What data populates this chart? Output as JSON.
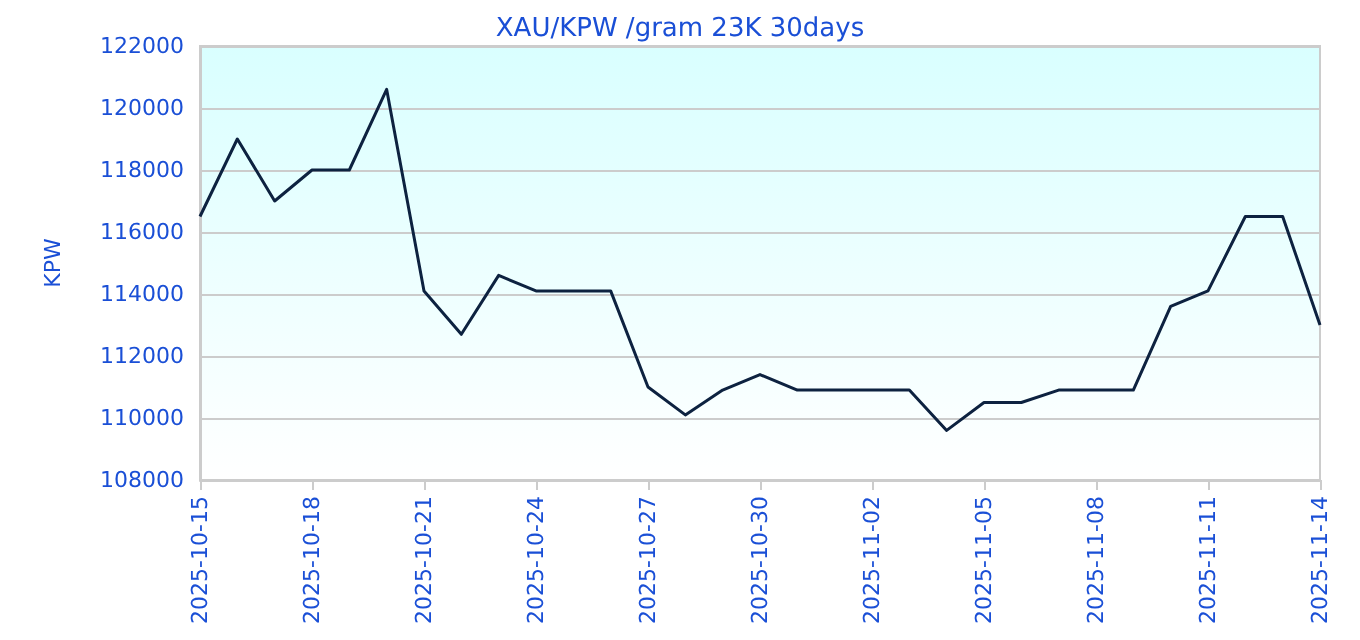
{
  "chart_data": {
    "type": "line",
    "title": "XAU/KPW /gram 23K 30days",
    "ylabel": "KPW",
    "x": [
      "2025-10-15",
      "2025-10-16",
      "2025-10-17",
      "2025-10-18",
      "2025-10-19",
      "2025-10-20",
      "2025-10-21",
      "2025-10-22",
      "2025-10-23",
      "2025-10-24",
      "2025-10-25",
      "2025-10-26",
      "2025-10-27",
      "2025-10-28",
      "2025-10-29",
      "2025-10-30",
      "2025-10-31",
      "2025-11-01",
      "2025-11-02",
      "2025-11-03",
      "2025-11-04",
      "2025-11-05",
      "2025-11-06",
      "2025-11-07",
      "2025-11-08",
      "2025-11-09",
      "2025-11-10",
      "2025-11-11",
      "2025-11-12",
      "2025-11-13",
      "2025-11-14"
    ],
    "series": [
      {
        "color": "#0d2240",
        "values": [
          116500,
          119000,
          117000,
          118000,
          118000,
          120600,
          114100,
          112700,
          114600,
          114100,
          114100,
          114100,
          111000,
          110100,
          110900,
          111400,
          110900,
          110900,
          110900,
          110900,
          109600,
          110500,
          110500,
          110900,
          110900,
          110900,
          113600,
          114100,
          116500,
          116500,
          113000
        ]
      }
    ],
    "xlim": [
      "2025-10-15",
      "2025-11-14"
    ],
    "xticks": [
      "2025-10-15",
      "2025-10-18",
      "2025-10-21",
      "2025-10-24",
      "2025-10-27",
      "2025-10-30",
      "2025-11-02",
      "2025-11-05",
      "2025-11-08",
      "2025-11-11",
      "2025-11-14"
    ],
    "ylim": [
      108000,
      122000
    ],
    "yticks": [
      108000,
      110000,
      112000,
      114000,
      116000,
      118000,
      120000,
      122000
    ],
    "grid": "y",
    "marker": "none",
    "line_style": "solid"
  }
}
